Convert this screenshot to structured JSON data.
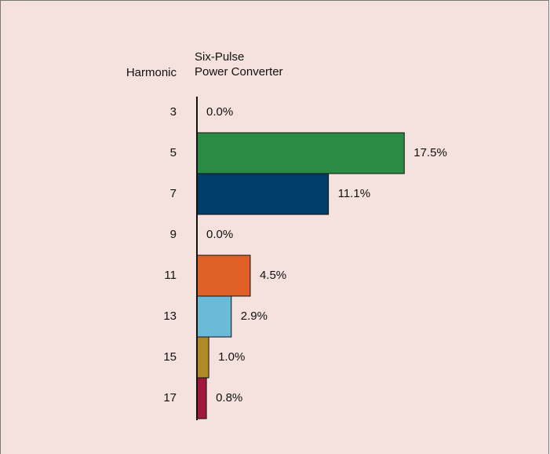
{
  "chart_data": {
    "type": "hbar",
    "category_header": "Harmonic",
    "value_header_lines": [
      "Six-Pulse",
      "Power Converter"
    ],
    "categories": [
      "3",
      "5",
      "7",
      "9",
      "11",
      "13",
      "15",
      "17"
    ],
    "values": [
      0,
      17.5,
      11.1,
      0,
      4.5,
      2.9,
      1.0,
      0.8
    ],
    "value_labels": [
      "0.0%",
      "17.5%",
      "11.1%",
      "0.0%",
      "4.5%",
      "2.9%",
      "1.0%",
      "0.8%"
    ],
    "colors": [
      null,
      "#2a8c44",
      "#003d6b",
      null,
      "#e06026",
      "#6bbbd8",
      "#b08a24",
      "#a0193c"
    ]
  }
}
